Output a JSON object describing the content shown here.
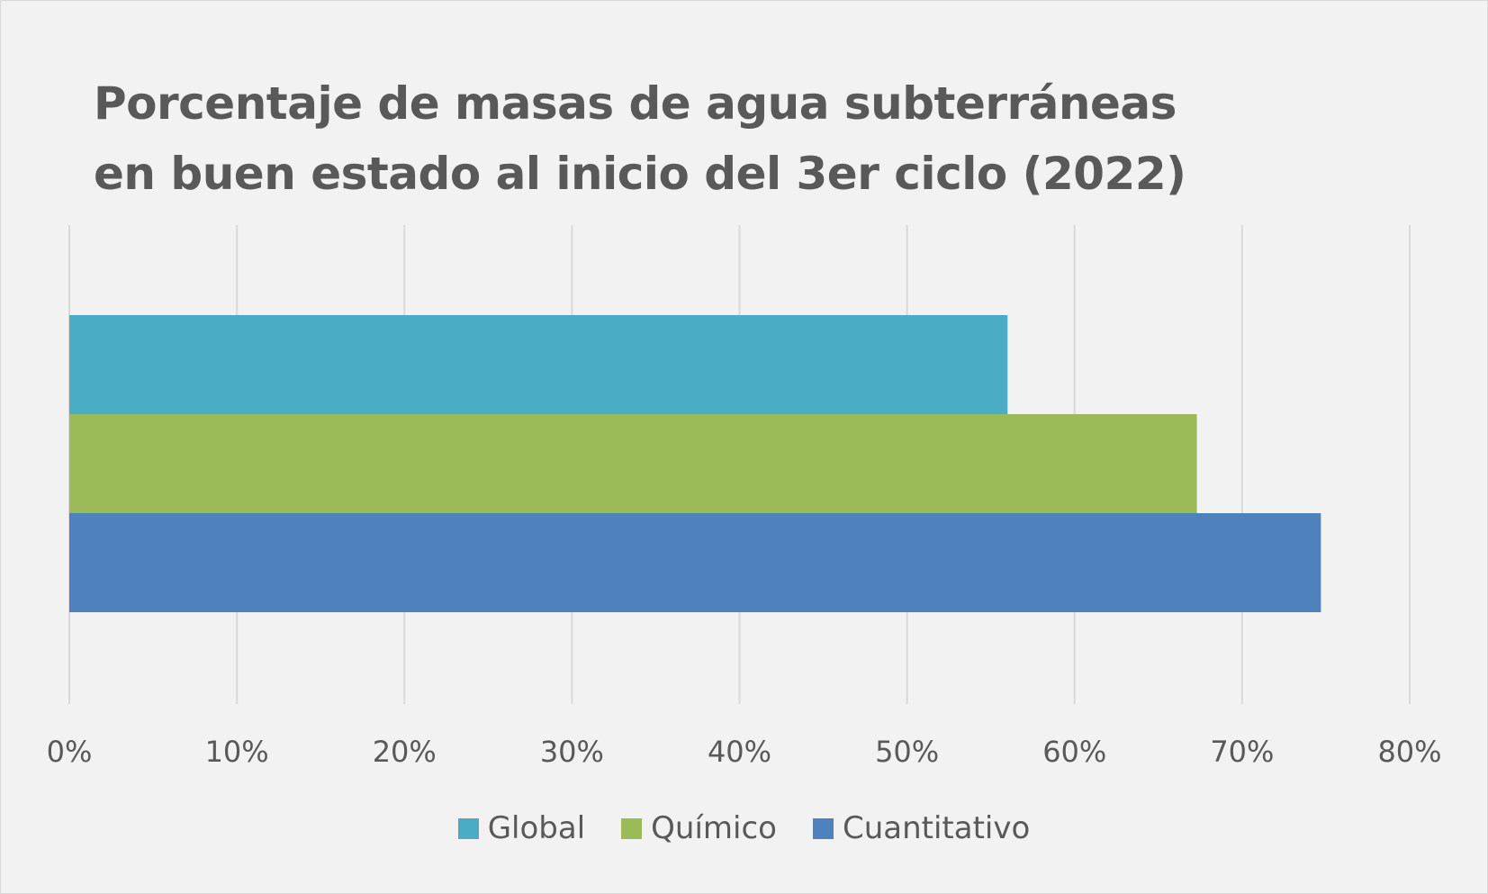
{
  "chart_data": {
    "type": "bar",
    "orientation": "horizontal",
    "title_lines": [
      "Porcentaje de masas de agua subterráneas",
      "en buen estado al inicio del 3er ciclo (2022)"
    ],
    "series": [
      {
        "name": "Global",
        "value": 56,
        "color": "#4bacc6"
      },
      {
        "name": "Químico",
        "value": 67.3,
        "color": "#9bbb59"
      },
      {
        "name": "Cuantitativo",
        "value": 74.7,
        "color": "#4f81bd"
      }
    ],
    "xlim": [
      0,
      80
    ],
    "x_ticks": [
      "0%",
      "10%",
      "20%",
      "30%",
      "40%",
      "50%",
      "60%",
      "70%",
      "80%"
    ],
    "grid": true,
    "legend_position": "bottom"
  }
}
